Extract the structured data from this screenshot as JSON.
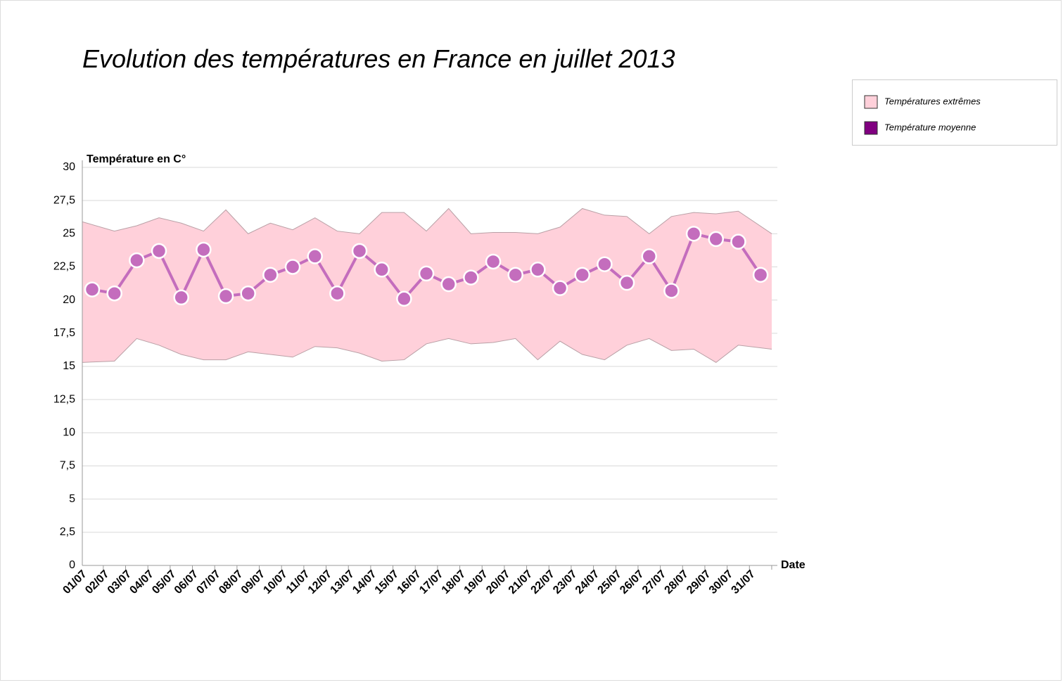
{
  "chart_data": {
    "type": "line",
    "title": "Evolution des températures en France en juillet 2013",
    "y_label": "Température en C°",
    "x_label": "Date",
    "categories": [
      "01/07",
      "02/07",
      "03/07",
      "04/07",
      "05/07",
      "06/07",
      "07/07",
      "08/07",
      "09/07",
      "10/07",
      "11/07",
      "12/07",
      "13/07",
      "14/07",
      "15/07",
      "16/07",
      "17/07",
      "18/07",
      "19/07",
      "20/07",
      "21/07",
      "22/07",
      "23/07",
      "24/07",
      "25/07",
      "26/07",
      "27/07",
      "28/07",
      "29/07",
      "30/07",
      "31/07"
    ],
    "series": [
      {
        "name": "Températures extrêmes",
        "type": "range",
        "color": "#ffd0da",
        "high": [
          25.9,
          25.2,
          25.6,
          26.2,
          25.8,
          25.2,
          26.8,
          25.0,
          25.8,
          25.3,
          26.2,
          25.2,
          25.0,
          26.6,
          26.6,
          25.2,
          26.9,
          25.0,
          25.1,
          25.1,
          25.0,
          25.5,
          26.9,
          26.4,
          26.3,
          25.0,
          26.3,
          26.6,
          26.5,
          26.7,
          25.0
        ],
        "low": [
          15.3,
          15.4,
          17.1,
          16.6,
          15.9,
          15.5,
          15.5,
          16.1,
          15.9,
          15.7,
          16.5,
          16.4,
          16.0,
          15.4,
          15.5,
          16.7,
          17.1,
          16.7,
          16.8,
          17.1,
          15.5,
          16.9,
          15.9,
          15.5,
          16.6,
          17.1,
          16.2,
          16.3,
          15.3,
          16.6,
          16.3
        ]
      },
      {
        "name": "Température moyenne",
        "color": "#800080",
        "line_color": "#c46dbd",
        "values": [
          20.8,
          20.5,
          23.0,
          23.7,
          20.2,
          23.8,
          20.3,
          20.5,
          21.9,
          22.5,
          23.3,
          20.5,
          23.7,
          22.3,
          20.1,
          22.0,
          21.2,
          21.7,
          22.9,
          21.9,
          22.3,
          20.9,
          21.9,
          22.7,
          21.3,
          23.3,
          20.7,
          25.0,
          24.6,
          24.4,
          21.9
        ]
      }
    ],
    "ylim": [
      0,
      30
    ],
    "yticks": [
      0,
      {
        "value": 2.5,
        "label": "2,5"
      },
      5,
      {
        "value": 7.5,
        "label": "7,5"
      },
      10,
      {
        "value": 12.5,
        "label": "12,5"
      },
      15,
      {
        "value": 17.5,
        "label": "17,5"
      },
      20,
      {
        "value": 22.5,
        "label": "22,5"
      },
      25,
      {
        "value": 27.5,
        "label": "27,5"
      },
      30
    ],
    "grid": true,
    "legend": "top-right"
  }
}
